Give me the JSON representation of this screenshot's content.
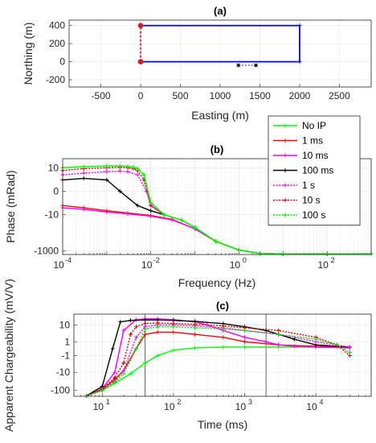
{
  "chart_data": [
    {
      "type": "line",
      "title": "(a)",
      "xlabel": "Easting (m)",
      "ylabel": "Northing (m)",
      "xlim": [
        -900,
        2900
      ],
      "ylim": [
        -280,
        460
      ],
      "xticks": [
        -500,
        0,
        500,
        1000,
        1500,
        2000,
        2500
      ],
      "xticklabels": [
        "-500",
        "0",
        "500",
        "1000",
        "1500",
        "2000",
        "2500"
      ],
      "yticks": [
        -200,
        0,
        200,
        400
      ],
      "yticklabels": [
        "-200",
        "0",
        "200",
        "400"
      ],
      "grid": true,
      "loop": {
        "color": "#0000ff",
        "x": [
          0,
          2000,
          2000,
          0
        ],
        "y": [
          400,
          400,
          0,
          0
        ]
      },
      "wire": {
        "color": "#ff0000",
        "x": [
          0,
          0
        ],
        "y": [
          0,
          400
        ]
      },
      "electrodes": {
        "color": "#c0272d",
        "x": [
          0,
          0
        ],
        "y": [
          0,
          400
        ]
      },
      "receiver": {
        "color": "#000000",
        "x": [
          1230,
          1450
        ],
        "y": [
          -40,
          -40
        ]
      }
    },
    {
      "type": "line",
      "title": "(b)",
      "xlabel": "Frequency (Hz)",
      "ylabel": "Phase (mRad)",
      "xscale": "log",
      "xlim": [
        0.0001,
        1000
      ],
      "yscale": "asinh",
      "ylim": [
        -1600,
        32
      ],
      "yticks": [
        10,
        0,
        -10,
        -1000
      ],
      "yticklabels": [
        "10",
        "0",
        "-10",
        "-1000"
      ],
      "xticks_exp": [
        -4,
        -2,
        0,
        2
      ],
      "grid": true,
      "legend": "right",
      "legend_entries": [
        {
          "label": "No IP",
          "color": "#00ff00",
          "dash": "solid",
          "marker": "plus"
        },
        {
          "label": "1 ms",
          "color": "#ff0000",
          "dash": "solid",
          "marker": "plus"
        },
        {
          "label": "10 ms",
          "color": "#ff00ff",
          "dash": "solid",
          "marker": "plus"
        },
        {
          "label": "100 ms",
          "color": "#000000",
          "dash": "solid",
          "marker": "plus"
        },
        {
          "label": "1 s",
          "color": "#ff00ff",
          "dash": "dotted",
          "marker": "plus"
        },
        {
          "label": "10 s",
          "color": "#d00000",
          "dash": "dotted",
          "marker": "plus"
        },
        {
          "label": "100 s",
          "color": "#00e000",
          "dash": "dotted",
          "marker": "plus"
        }
      ],
      "series": [
        {
          "color": "#ff0000",
          "dash": "solid",
          "x": [
            0.0001,
            0.0003,
            0.001,
            0.003,
            0.01,
            0.03,
            0.1,
            0.3,
            1,
            3,
            10,
            100,
            1000
          ],
          "y": [
            -3,
            -4,
            -6,
            -8,
            -11,
            -18,
            -60,
            -300,
            -900,
            -1400,
            -1500,
            -1500,
            -1500
          ]
        },
        {
          "color": "#ff00ff",
          "dash": "solid",
          "x": [
            0.0001,
            0.0003,
            0.001,
            0.003,
            0.01,
            0.03,
            0.1,
            0.3,
            1,
            3,
            10,
            100,
            1000
          ],
          "y": [
            -4,
            -5,
            -7,
            -9,
            -12,
            -19,
            -60,
            -300,
            -900,
            -1400,
            -1500,
            -1500,
            -1500
          ]
        },
        {
          "color": "#000000",
          "dash": "solid",
          "x": [
            0.0001,
            0.0003,
            0.001,
            0.002,
            0.005,
            0.01,
            0.02,
            0.05,
            0.1,
            0.3,
            1,
            3,
            10,
            100,
            1000
          ],
          "y": [
            2,
            2.5,
            2,
            0,
            -3,
            -6,
            -10,
            -20,
            -50,
            -300,
            -900,
            -1400,
            -1500,
            -1500,
            -1500
          ]
        },
        {
          "color": "#ff00ff",
          "dash": "dotted",
          "x": [
            0.0001,
            0.0003,
            0.001,
            0.002,
            0.003,
            0.005,
            0.008,
            0.01,
            0.02,
            0.05,
            0.1,
            0.3,
            1,
            3,
            10,
            100,
            1000
          ],
          "y": [
            4,
            5,
            6,
            6.5,
            6,
            4,
            0,
            -3,
            -10,
            -20,
            -50,
            -300,
            -900,
            -1400,
            -1500,
            -1500,
            -1500
          ]
        },
        {
          "color": "#d00000",
          "dash": "dotted",
          "x": [
            0.0001,
            0.0003,
            0.001,
            0.002,
            0.003,
            0.004,
            0.005,
            0.007,
            0.01,
            0.02,
            0.05,
            0.1,
            0.3,
            1,
            3,
            10,
            100,
            1000
          ],
          "y": [
            7,
            9,
            10,
            10.5,
            10,
            9,
            7,
            2,
            -3,
            -10,
            -20,
            -50,
            -300,
            -900,
            -1400,
            -1500,
            -1500,
            -1500
          ]
        },
        {
          "color": "#00e000",
          "dash": "dotted",
          "x": [
            0.0001,
            0.0003,
            0.001,
            0.002,
            0.003,
            0.004,
            0.005,
            0.007,
            0.01,
            0.02,
            0.05,
            0.1,
            0.3,
            1,
            3,
            10,
            100,
            1000
          ],
          "y": [
            10,
            11.5,
            12.5,
            12.5,
            12,
            11,
            9,
            4,
            -2,
            -10,
            -20,
            -50,
            -300,
            -900,
            -1400,
            -1500,
            -1500,
            -1500
          ]
        },
        {
          "color": "#00ff00",
          "dash": "solid",
          "x": [
            0.0001,
            0.0003,
            0.001,
            0.002,
            0.003,
            0.004,
            0.005,
            0.007,
            0.01,
            0.02,
            0.05,
            0.1,
            0.3,
            1,
            3,
            10,
            100,
            1000
          ],
          "y": [
            10,
            11.5,
            12.5,
            12.5,
            12,
            11,
            9,
            4,
            -2,
            -10,
            -20,
            -50,
            -300,
            -900,
            -1400,
            -1500,
            -1500,
            -1500
          ]
        }
      ]
    },
    {
      "type": "line",
      "title": "(c)",
      "xlabel": "Time (ms)",
      "ylabel": "Apparent Chargeability (mV/V)",
      "xscale": "log",
      "xlim": [
        4,
        60000
      ],
      "yscale": "asinh",
      "ylim": [
        -210,
        40
      ],
      "yticks": [
        10,
        1,
        -1,
        -10,
        -100
      ],
      "yticklabels": [
        "10",
        "1",
        "-1",
        "-10",
        "-100"
      ],
      "xticks_exp": [
        1,
        2,
        3,
        4
      ],
      "vlines": [
        40,
        2000
      ],
      "grid": true,
      "series": [
        {
          "color": "#00ff00",
          "dash": "solid",
          "x": [
            6,
            10,
            15,
            25,
            40,
            60,
            100,
            200,
            500,
            1000,
            3000,
            10000,
            20000,
            30000
          ],
          "y": [
            -200,
            -100,
            -40,
            -12,
            -3,
            -1,
            -0.2,
            0.1,
            0.2,
            0.2,
            0.2,
            0.2,
            0.2,
            0.2
          ]
        },
        {
          "color": "#ff0000",
          "dash": "solid",
          "x": [
            6,
            10,
            15,
            20,
            30,
            40,
            60,
            100,
            200,
            500,
            1000,
            3000,
            10000,
            30000
          ],
          "y": [
            -200,
            -90,
            -25,
            -8,
            0,
            3,
            4,
            4,
            3,
            2,
            1,
            0.5,
            0.3,
            0.2
          ]
        },
        {
          "color": "#ff00ff",
          "dash": "solid",
          "x": [
            6,
            10,
            15,
            20,
            30,
            40,
            60,
            100,
            200,
            300,
            500,
            1000,
            2000,
            3000,
            5000,
            10000,
            30000
          ],
          "y": [
            -200,
            -80,
            -10,
            5,
            20,
            22,
            22,
            20,
            15,
            10,
            5,
            2,
            1,
            0.5,
            0.3,
            0.2,
            0.1
          ]
        },
        {
          "color": "#000000",
          "dash": "solid",
          "x": [
            6,
            10,
            14,
            18,
            25,
            40,
            60,
            100,
            200,
            500,
            1000,
            2000,
            3000,
            5000,
            10000,
            30000
          ],
          "y": [
            -200,
            -60,
            0,
            15,
            18,
            19,
            19,
            18,
            16,
            12,
            8,
            5,
            3,
            1.5,
            0.5,
            0.2
          ]
        },
        {
          "color": "#ff00ff",
          "dash": "dotted",
          "x": [
            6,
            10,
            15,
            20,
            30,
            40,
            60,
            100,
            200,
            500,
            1000,
            3000,
            10000,
            30000
          ],
          "y": [
            -200,
            -90,
            -30,
            -8,
            2,
            8,
            10,
            10,
            9,
            7,
            5,
            3,
            1,
            0.2
          ]
        },
        {
          "color": "#d00000",
          "dash": "dotted",
          "x": [
            6,
            10,
            15,
            20,
            25,
            30,
            40,
            60,
            100,
            200,
            500,
            1000,
            3000,
            10000,
            20000,
            30000
          ],
          "y": [
            -200,
            -80,
            -20,
            -3,
            3,
            8,
            12,
            13,
            12,
            11,
            9,
            7,
            5,
            2,
            0.5,
            -1
          ]
        },
        {
          "color": "#00e000",
          "dash": "dotted",
          "x": [
            6,
            10,
            15,
            20,
            30,
            40,
            60,
            100,
            200,
            500,
            1000,
            3000,
            10000,
            20000,
            30000
          ],
          "y": [
            -200,
            -95,
            -35,
            -12,
            0,
            6,
            8,
            8,
            7,
            6,
            5,
            3,
            1.5,
            0.5,
            -0.5
          ]
        }
      ]
    }
  ]
}
